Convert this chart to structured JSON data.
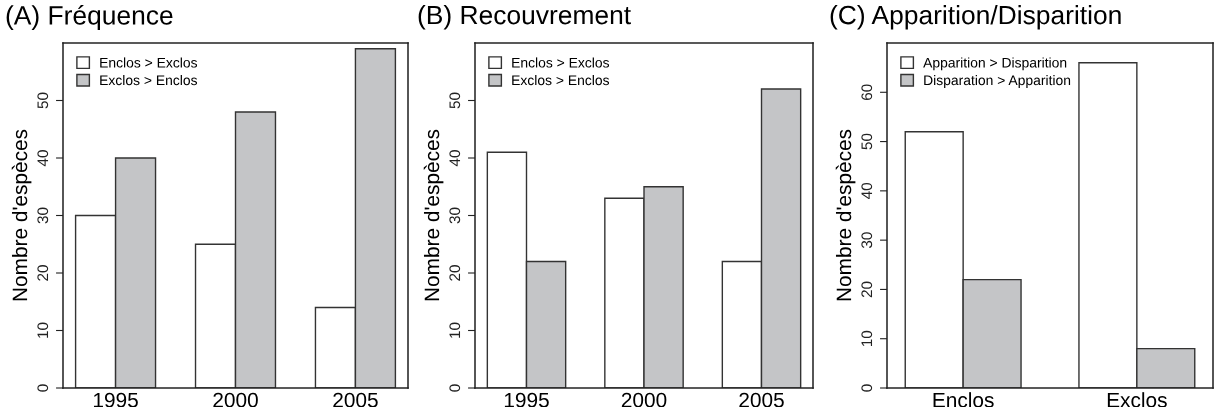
{
  "chart_data": [
    {
      "type": "bar",
      "title": "(A) Fréquence",
      "ylabel": "Nombre d'espèces",
      "categories": [
        "1995",
        "2000",
        "2005"
      ],
      "ylim": [
        0,
        60
      ],
      "yticks": [
        0,
        10,
        20,
        30,
        40,
        50
      ],
      "legend": "top left",
      "series": [
        {
          "name": "Enclos > Exclos",
          "color": "#ffffff",
          "values": [
            30,
            25,
            14
          ]
        },
        {
          "name": "Exclos > Enclos",
          "color": "#c4c5c7",
          "values": [
            40,
            48,
            59
          ]
        }
      ]
    },
    {
      "type": "bar",
      "title": "(B) Recouvrement",
      "ylabel": "Nombre d'espèces",
      "categories": [
        "1995",
        "2000",
        "2005"
      ],
      "ylim": [
        0,
        60
      ],
      "yticks": [
        0,
        10,
        20,
        30,
        40,
        50
      ],
      "legend": "top left",
      "series": [
        {
          "name": "Enclos > Exclos",
          "color": "#ffffff",
          "values": [
            41,
            33,
            22
          ]
        },
        {
          "name": "Exclos > Enclos",
          "color": "#c4c5c7",
          "values": [
            22,
            35,
            52
          ]
        }
      ]
    },
    {
      "type": "bar",
      "title": "(C) Apparition/Disparition",
      "ylabel": "Nombre d'espèces",
      "categories": [
        "Enclos",
        "Exclos"
      ],
      "ylim": [
        0,
        70
      ],
      "yticks": [
        0,
        10,
        20,
        30,
        40,
        50,
        60
      ],
      "legend": "top left",
      "series": [
        {
          "name": "Apparition > Disparition",
          "color": "#ffffff",
          "values": [
            52,
            66
          ]
        },
        {
          "name": "Disparation > Apparition",
          "color": "#c4c5c7",
          "values": [
            22,
            8
          ]
        }
      ]
    }
  ]
}
